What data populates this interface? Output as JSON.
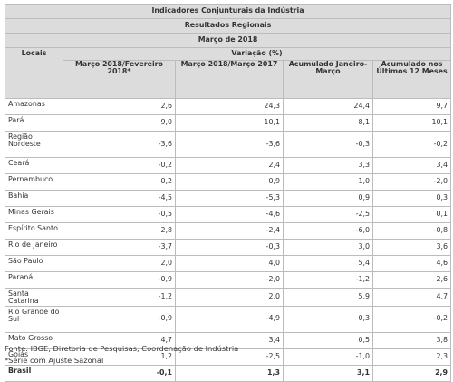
{
  "table": {
    "title": "Indicadores Conjunturais da Indústria",
    "subtitle": "Resultados Regionais",
    "period": "Março de 2018",
    "locais_header": "Locais",
    "variacao_header": "Variação (%)",
    "columns": [
      "Março 2018/Fevereiro 2018*",
      "Março 2018/Março 2017",
      "Acumulado Janeiro-Março",
      "Acumulado nos Últimos 12 Meses"
    ],
    "rows": [
      {
        "local": "Amazonas",
        "values": [
          "2,6",
          "24,3",
          "24,4",
          "9,7"
        ]
      },
      {
        "local": "Pará",
        "values": [
          "9,0",
          "10,1",
          "8,1",
          "10,1"
        ]
      },
      {
        "local": "Região Nordeste",
        "values": [
          "-3,6",
          "-3,6",
          "-0,3",
          "-0,2"
        ]
      },
      {
        "local": "Ceará",
        "values": [
          "-0,2",
          "2,4",
          "3,3",
          "3,4"
        ]
      },
      {
        "local": "Pernambuco",
        "values": [
          "0,2",
          "0,9",
          "1,0",
          "-2,0"
        ]
      },
      {
        "local": "Bahia",
        "values": [
          "-4,5",
          "-5,3",
          "0,9",
          "0,3"
        ]
      },
      {
        "local": "Minas Gerais",
        "values": [
          "-0,5",
          "-4,6",
          "-2,5",
          "0,1"
        ]
      },
      {
        "local": "Espírito Santo",
        "values": [
          "2,8",
          "-2,4",
          "-6,0",
          "-0,8"
        ]
      },
      {
        "local": "Rio de Janeiro",
        "values": [
          "-3,7",
          "-0,3",
          "3,0",
          "3,6"
        ]
      },
      {
        "local": "São Paulo",
        "values": [
          "2,0",
          "4,0",
          "5,4",
          "4,6"
        ]
      },
      {
        "local": "Paraná",
        "values": [
          "-0,9",
          "-2,0",
          "-1,2",
          "2,6"
        ]
      },
      {
        "local": "Santa Catarina",
        "values": [
          "-1,2",
          "2,0",
          "5,9",
          "4,7"
        ]
      },
      {
        "local": "Rio Grande do Sul",
        "values": [
          "-0,9",
          "-4,9",
          "0,3",
          "-0,2"
        ]
      },
      {
        "local": "Mato Grosso",
        "values": [
          "4,7",
          "3,4",
          "0,5",
          "3,8"
        ]
      },
      {
        "local": "Goiás",
        "values": [
          "1,2",
          "-2,5",
          "-1,0",
          "2,3"
        ]
      }
    ],
    "total": {
      "local": "Brasil",
      "values": [
        "-0,1",
        "1,3",
        "3,1",
        "2,9"
      ]
    }
  },
  "footer": {
    "source": "Fonte: IBGE, Diretoria de Pesquisas, Coordenação de Indústria",
    "note": "*Série com Ajuste Sazonal"
  }
}
